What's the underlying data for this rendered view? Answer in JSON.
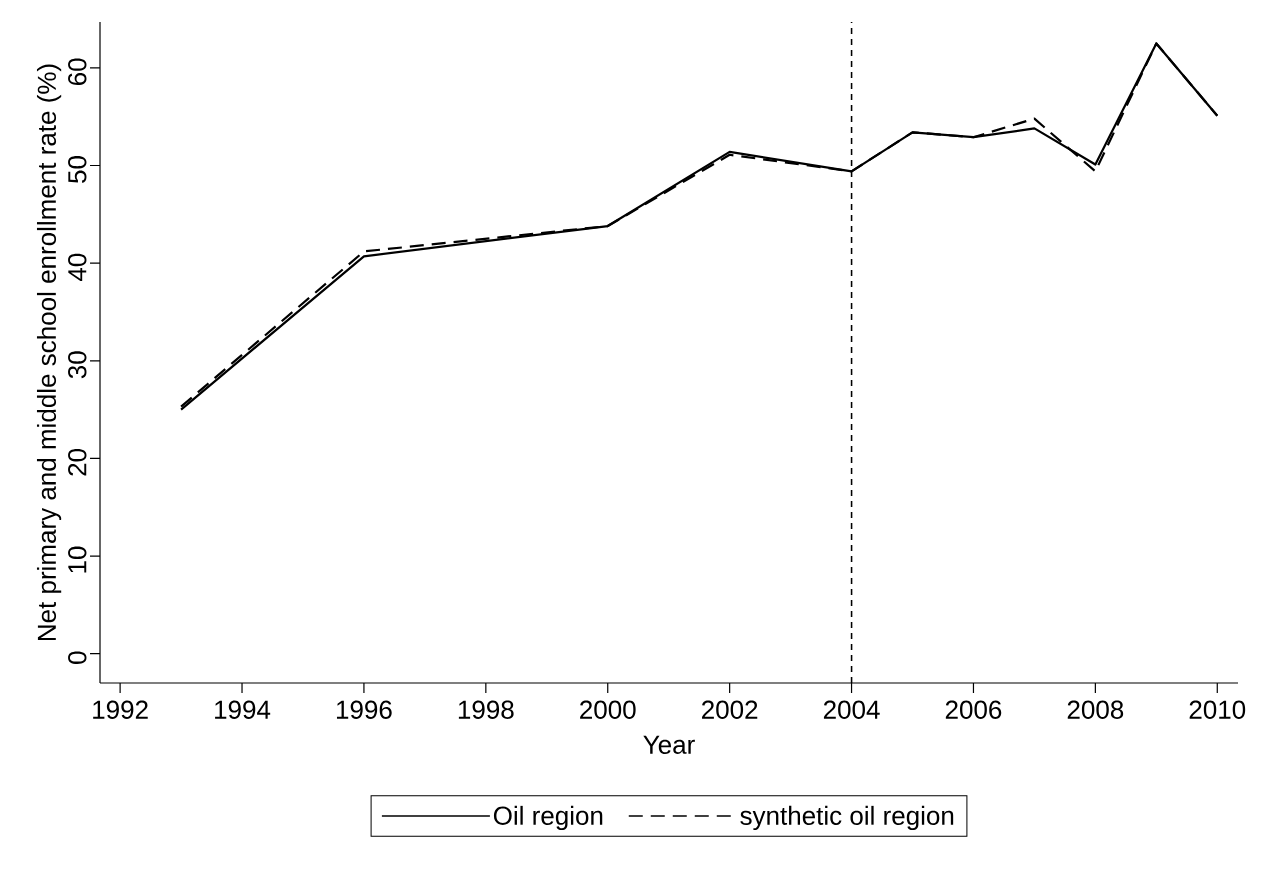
{
  "chart_data": {
    "type": "line",
    "xlabel": "Year",
    "ylabel": "Net primary and middle school enrollment rate (%)",
    "x": [
      1993,
      1996,
      2000,
      2002,
      2004,
      2005,
      2006,
      2007,
      2008,
      2009,
      2010
    ],
    "series": [
      {
        "name": "Oil region",
        "color": "#000000",
        "line_style": "solid",
        "values": [
          25.0,
          40.7,
          43.8,
          51.4,
          49.4,
          53.4,
          52.9,
          53.8,
          50.1,
          62.5,
          55.1
        ]
      },
      {
        "name": "synthetic oil region",
        "color": "#000000",
        "line_style": "dashed",
        "values": [
          25.3,
          41.2,
          43.8,
          51.1,
          49.4,
          53.4,
          52.9,
          54.8,
          49.4,
          62.5,
          55.1
        ]
      }
    ],
    "xlim": [
      1991.67,
      2010.34
    ],
    "ylim": [
      -3,
      64.7
    ],
    "xticks": [
      1992,
      1994,
      1996,
      1998,
      2000,
      2002,
      2004,
      2006,
      2008,
      2010
    ],
    "yticks": [
      0,
      10,
      20,
      30,
      40,
      50,
      60
    ],
    "ref_lines": [
      {
        "axis": "x",
        "value": 2004,
        "line_style": "dashed",
        "color": "#000000"
      }
    ],
    "legend": "bottom"
  }
}
